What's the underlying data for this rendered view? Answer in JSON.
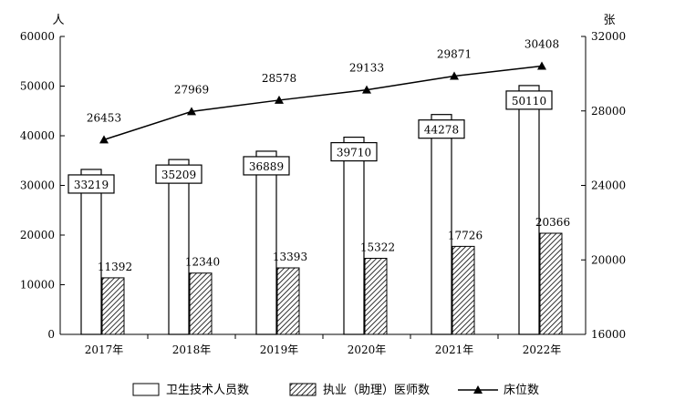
{
  "chart_data": {
    "type": "bar",
    "categories": [
      "2017年",
      "2018年",
      "2019年",
      "2020年",
      "2021年",
      "2022年"
    ],
    "series": [
      {
        "name": "卫生技术人员数",
        "kind": "bar",
        "axis": "left",
        "fill": "white",
        "values": [
          33219,
          35209,
          36889,
          39710,
          44278,
          50110
        ]
      },
      {
        "name": "执业（助理）医师数",
        "kind": "bar",
        "axis": "left",
        "fill": "hatched",
        "values": [
          11392,
          12340,
          13393,
          15322,
          17726,
          20366
        ]
      },
      {
        "name": "床位数",
        "kind": "line",
        "axis": "right",
        "marker": "triangle",
        "values": [
          26453,
          27969,
          28578,
          29133,
          29871,
          30408
        ]
      }
    ],
    "y_left": {
      "unit": "人",
      "range": [
        0,
        60000
      ],
      "ticks": [
        "0",
        "10000",
        "20000",
        "30000",
        "40000",
        "50000",
        "60000"
      ]
    },
    "y_right": {
      "unit": "张",
      "range": [
        16000,
        32000
      ],
      "ticks": [
        "16000",
        "20000",
        "24000",
        "28000",
        "32000"
      ]
    },
    "legend": {
      "position": "bottom"
    },
    "grid": false,
    "colors": {
      "line": "#000000",
      "bar_fill": "#ffffff",
      "hatch": "#000000"
    }
  }
}
